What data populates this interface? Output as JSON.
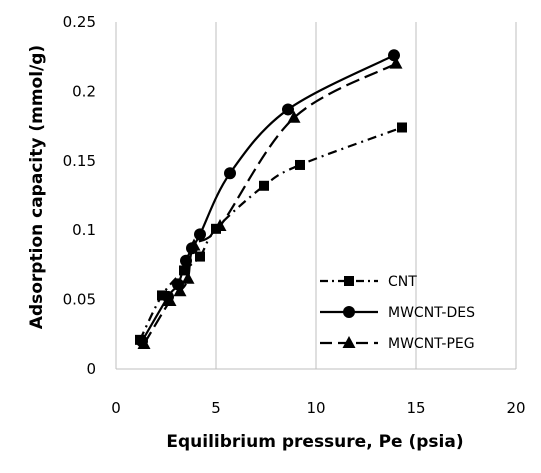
{
  "chart_data": {
    "type": "line",
    "title": "",
    "xlabel": "Equilibrium pressure, Pe (psia)",
    "ylabel": "Adsorption capacity (mmol/g)",
    "xlim": [
      0,
      20
    ],
    "ylim": [
      0,
      0.25
    ],
    "xticks": [
      "0",
      "5",
      "10",
      "15",
      "20"
    ],
    "yticks": [
      "0",
      "0.05",
      "0.1",
      "0.15",
      "0.2",
      "0.25"
    ],
    "grid": "vertical",
    "legend": "bottom-right",
    "series": [
      {
        "name": "CNT",
        "marker": "square",
        "line_style": "dash-dot",
        "x": [
          1.2,
          2.3,
          3.4,
          4.2,
          5.0,
          7.4,
          9.2,
          14.3
        ],
        "y": [
          0.021,
          0.053,
          0.071,
          0.081,
          0.101,
          0.132,
          0.147,
          0.174
        ]
      },
      {
        "name": "MWCNT-DES",
        "marker": "circle",
        "line_style": "solid",
        "x": [
          1.3,
          2.6,
          3.1,
          3.5,
          3.8,
          4.2,
          5.7,
          8.6,
          13.9
        ],
        "y": [
          0.02,
          0.052,
          0.061,
          0.078,
          0.087,
          0.097,
          0.141,
          0.187,
          0.226
        ]
      },
      {
        "name": "MWCNT-PEG",
        "marker": "triangle",
        "line_style": "dashed",
        "x": [
          1.4,
          2.7,
          3.2,
          3.6,
          3.9,
          5.2,
          8.9,
          14.0
        ],
        "y": [
          0.018,
          0.049,
          0.056,
          0.065,
          0.089,
          0.103,
          0.181,
          0.22
        ]
      }
    ],
    "colors": {
      "line": "#000000",
      "grid": "#bfbfbf",
      "background": "#ffffff"
    }
  }
}
